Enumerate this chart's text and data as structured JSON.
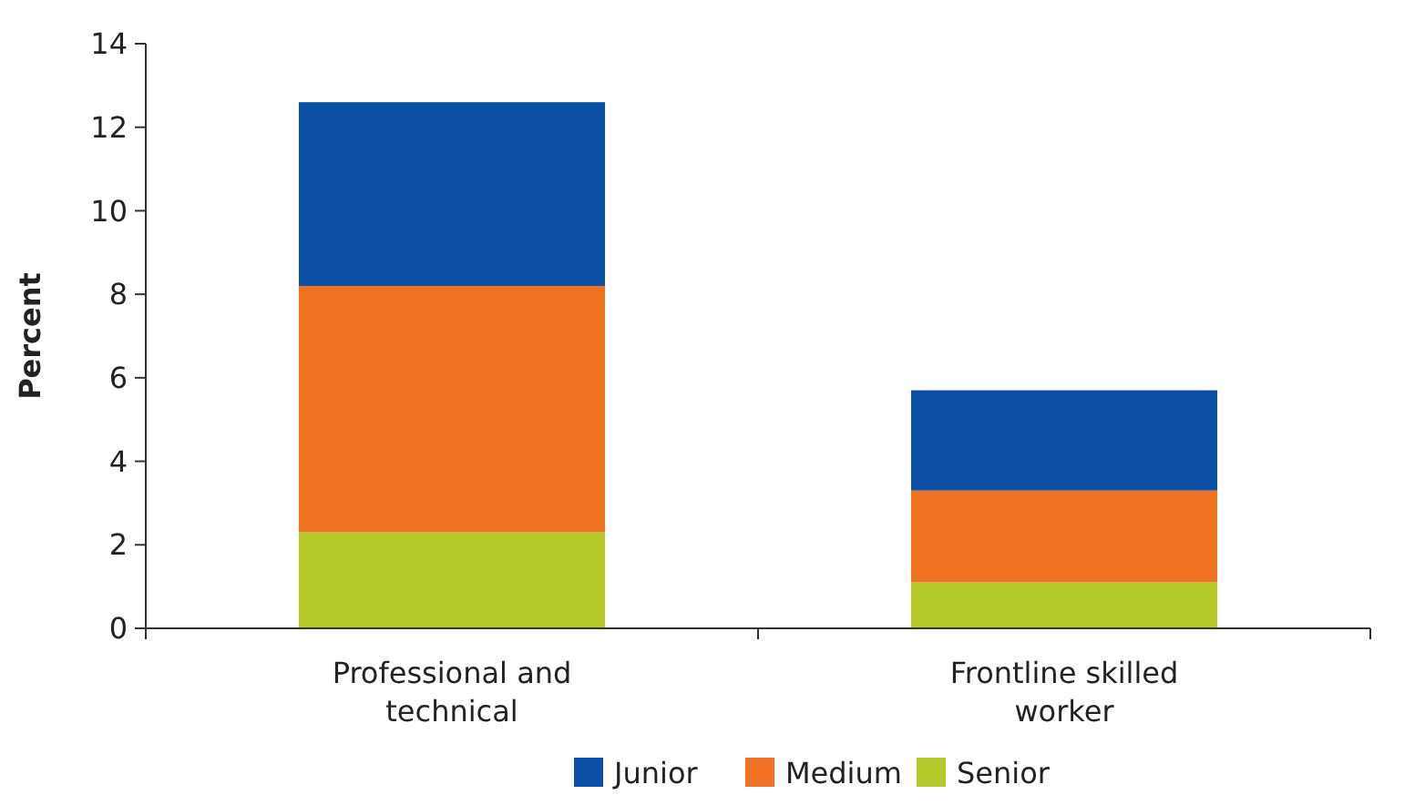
{
  "chart_data": {
    "type": "bar",
    "stacked": true,
    "ylabel": "Percent",
    "categories": [
      "Professional and technical",
      "Frontline skilled worker"
    ],
    "series": [
      {
        "name": "Senior",
        "color": "#b5c92a",
        "values": [
          2.3,
          1.1
        ]
      },
      {
        "name": "Medium",
        "color": "#f07223",
        "values": [
          5.9,
          2.2
        ]
      },
      {
        "name": "Junior",
        "color": "#0a4fa3",
        "values": [
          4.4,
          2.4
        ]
      }
    ],
    "ylim": [
      0,
      14
    ],
    "yticks": [
      0,
      2,
      4,
      6,
      8,
      10,
      12,
      14
    ],
    "legend": "bottom",
    "grid": false
  }
}
